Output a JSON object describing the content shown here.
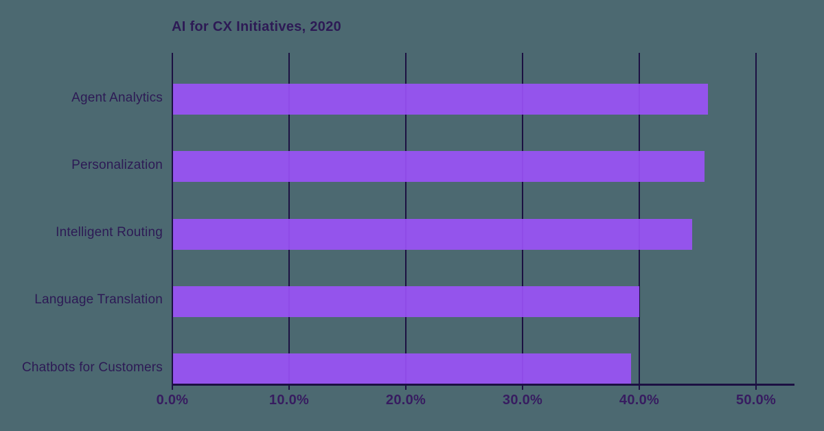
{
  "page": {
    "background_color": "#4C6971"
  },
  "chart_data": {
    "type": "bar",
    "orientation": "horizontal",
    "title": "AI for CX Initiatives, 2020",
    "categories": [
      "Agent Analytics",
      "Personalization",
      "Intelligent Routing",
      "Language Translation",
      "Chatbots for Customers"
    ],
    "values": [
      45.9,
      45.6,
      44.5,
      40.0,
      39.3
    ],
    "x_ticks": [
      {
        "label": "0.0%",
        "value": 0
      },
      {
        "label": "10.0%",
        "value": 10
      },
      {
        "label": "20.0%",
        "value": 20
      },
      {
        "label": "30.0%",
        "value": 30
      },
      {
        "label": "40.0%",
        "value": 40
      },
      {
        "label": "50.0%",
        "value": 50
      }
    ],
    "xlim": [
      0,
      53.3
    ],
    "ylabel": "",
    "xlabel": "",
    "grid": true,
    "legend": false,
    "colors": {
      "bar": "#9C52FA",
      "gridline": "#1C1042",
      "axis": "#1C1042",
      "title_text": "#2D1A55",
      "category_text": "#2D1A55",
      "tick_text": "#371C60"
    }
  }
}
